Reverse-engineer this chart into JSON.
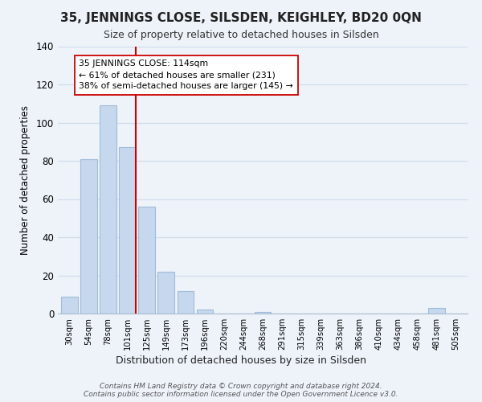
{
  "title": "35, JENNINGS CLOSE, SILSDEN, KEIGHLEY, BD20 0QN",
  "subtitle": "Size of property relative to detached houses in Silsden",
  "xlabel": "Distribution of detached houses by size in Silsden",
  "ylabel": "Number of detached properties",
  "bar_labels": [
    "30sqm",
    "54sqm",
    "78sqm",
    "101sqm",
    "125sqm",
    "149sqm",
    "173sqm",
    "196sqm",
    "220sqm",
    "244sqm",
    "268sqm",
    "291sqm",
    "315sqm",
    "339sqm",
    "363sqm",
    "386sqm",
    "410sqm",
    "434sqm",
    "458sqm",
    "481sqm",
    "505sqm"
  ],
  "bar_values": [
    9,
    81,
    109,
    87,
    56,
    22,
    12,
    2,
    0,
    0,
    1,
    0,
    0,
    0,
    0,
    0,
    0,
    0,
    0,
    3,
    0
  ],
  "bar_color": "#c5d8ed",
  "bar_edge_color": "#a0bcd8",
  "annotation_text": "35 JENNINGS CLOSE: 114sqm\n← 61% of detached houses are smaller (231)\n38% of semi-detached houses are larger (145) →",
  "annotation_box_color": "#ffffff",
  "annotation_box_edge": "#cc0000",
  "marker_color": "#cc0000",
  "ylim": [
    0,
    140
  ],
  "yticks": [
    0,
    20,
    40,
    60,
    80,
    100,
    120,
    140
  ],
  "footer_text": "Contains HM Land Registry data © Crown copyright and database right 2024.\nContains public sector information licensed under the Open Government Licence v3.0.",
  "background_color": "#eef3fa",
  "grid_color": "#d0dcea",
  "spine_color": "#aabccc"
}
